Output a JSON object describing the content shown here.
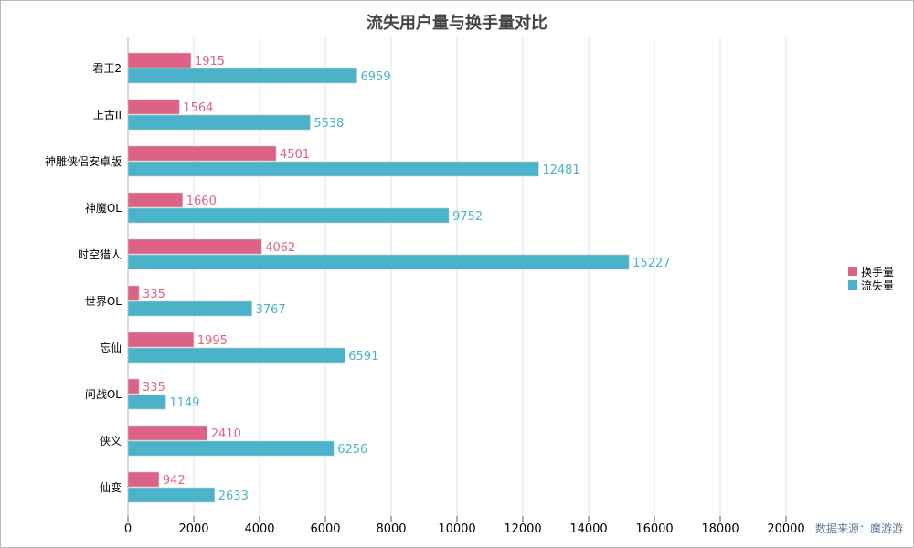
{
  "chart_data": {
    "type": "bar",
    "orientation": "horizontal",
    "title": "流失用户量与换手量对比",
    "categories": [
      "君王2",
      "上古II",
      "神雕侠侣安卓版",
      "神魔OL",
      "时空猎人",
      "世界OL",
      "忘仙",
      "问战OL",
      "侠义",
      "仙变"
    ],
    "series": [
      {
        "name": "换手量",
        "color": "#dc6287",
        "values": [
          1915,
          1564,
          4501,
          1660,
          4062,
          335,
          1995,
          335,
          2410,
          942
        ]
      },
      {
        "name": "流失量",
        "color": "#4ab3ca",
        "values": [
          6959,
          5538,
          12481,
          9752,
          15227,
          3767,
          6591,
          1149,
          6256,
          2633
        ]
      }
    ],
    "xlim": [
      0,
      20000
    ],
    "xticks": [
      "0",
      "2000",
      "4000",
      "6000",
      "8000",
      "10000",
      "12000",
      "14000",
      "16000",
      "18000",
      "20000"
    ],
    "grid": true,
    "legend": "right",
    "source": "数据来源：魔游游"
  }
}
